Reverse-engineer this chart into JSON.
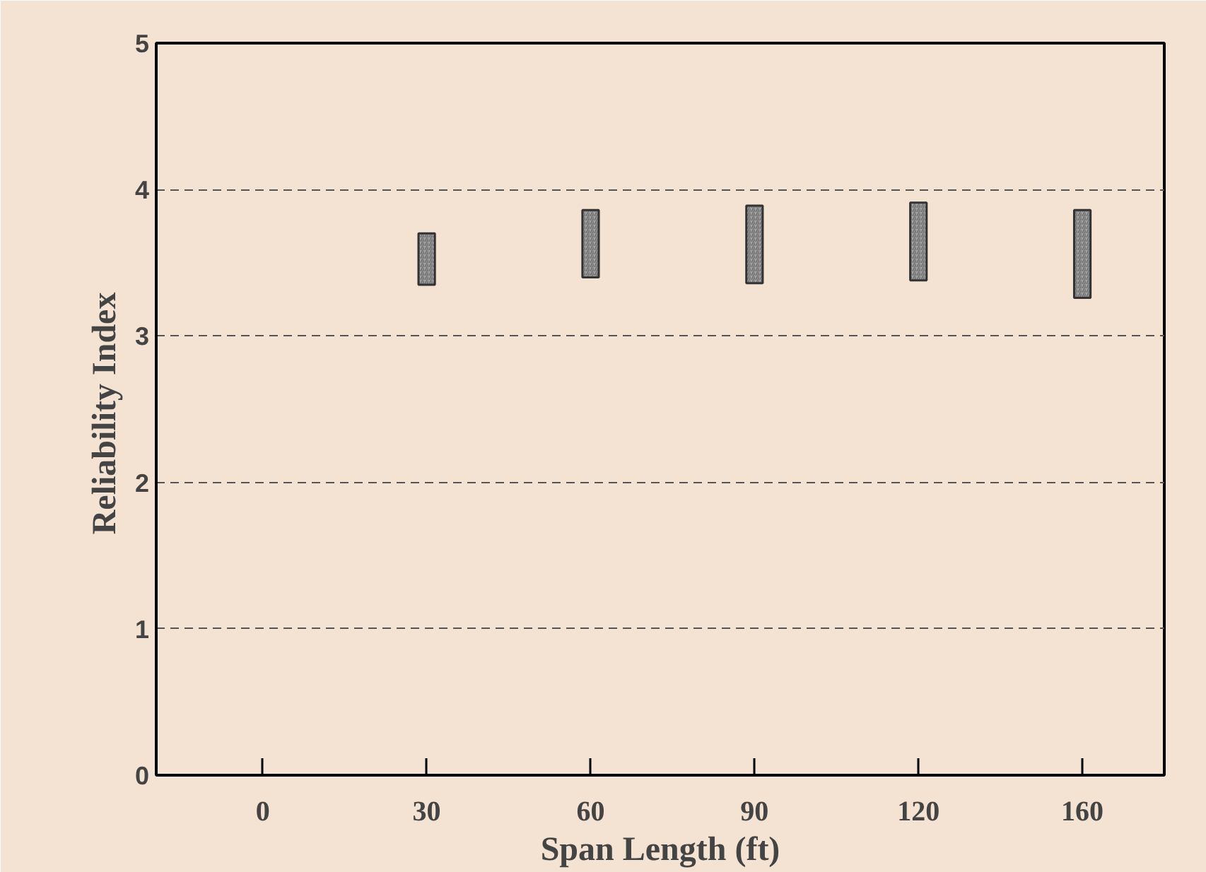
{
  "chart_data": {
    "type": "bar",
    "xlabel": "Span Length (ft)",
    "ylabel": "Reliability  Index",
    "categories": [
      "0",
      "30",
      "60",
      "90",
      "120",
      "160"
    ],
    "values": [
      null,
      0.35,
      0.46,
      0.53,
      0.53,
      0.6
    ],
    "base": [
      null,
      3.35,
      3.4,
      3.36,
      3.38,
      3.26
    ],
    "color": "#a6a6a6",
    "ylim": [
      0,
      5
    ],
    "yticks": [
      0,
      1,
      2,
      3,
      4,
      5
    ],
    "grid": "y"
  }
}
